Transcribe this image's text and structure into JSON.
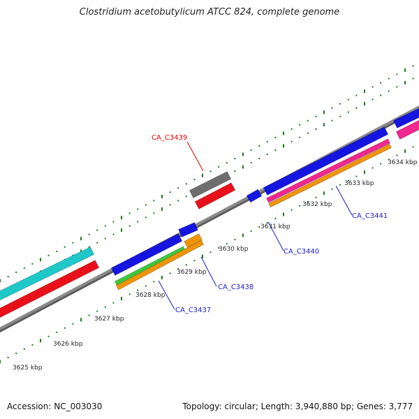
{
  "title": "Clostridium acetobutylicum ATCC 824, complete genome",
  "footer": {
    "accession": "Accession: NC_003030",
    "summary": "Topology: circular; Length: 3,940,880 bp; Genes: 3,777"
  },
  "colors": {
    "background": "#ffffff",
    "backbone": "#8a8a8a",
    "tick": "#1f7a1f",
    "label_red": "#e00000",
    "label_blue": "#1a1acc"
  },
  "scale_labels": [
    "3625 kbp",
    "3626 kbp",
    "3627 kbp",
    "3628 kbp",
    "3629 kbp",
    "3630 kbp",
    "3631 kbp",
    "3632 kbp",
    "3633 kbp",
    "3634 kbp"
  ],
  "gene_labels": [
    {
      "text": "CA_C3439",
      "color": "#e00000"
    },
    {
      "text": "CA_C3437",
      "color": "#1a1acc"
    },
    {
      "text": "CA_C3438",
      "color": "#1a1acc"
    },
    {
      "text": "CA_C3440",
      "color": "#1a1acc"
    },
    {
      "text": "CA_C3441",
      "color": "#1a1acc"
    }
  ],
  "feature_colors": {
    "cyan": "#1ec8c8",
    "red": "#e8101a",
    "blue": "#1515e0",
    "green": "#3cc83c",
    "orange": "#f0940a",
    "gray": "#6e6e6e",
    "pink": "#f02890"
  }
}
